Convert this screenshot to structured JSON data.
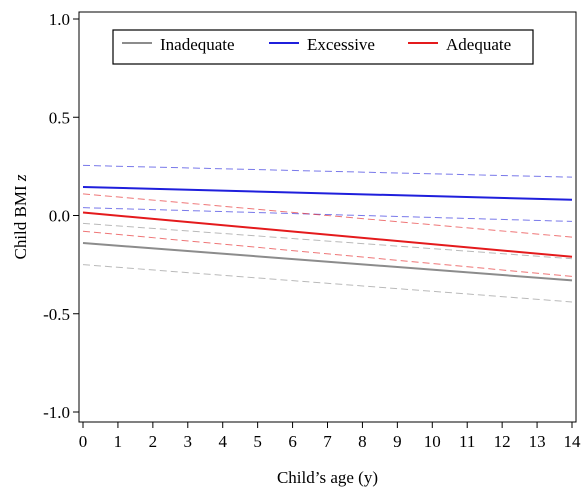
{
  "chart_data": {
    "type": "line",
    "xlabel": "Child’s age (y)",
    "ylabel": "Child BMI ",
    "ylabel_italic": "z",
    "xlim": [
      0,
      14
    ],
    "ylim": [
      -1.0,
      1.0
    ],
    "x_ticks": [
      0,
      1,
      2,
      3,
      4,
      5,
      6,
      7,
      8,
      9,
      10,
      11,
      12,
      13,
      14
    ],
    "y_ticks": [
      -1.0,
      -0.5,
      0.0,
      0.5,
      1.0
    ],
    "y_tick_labels": [
      "-1.0",
      "-0.5",
      "0.0",
      "0.5",
      "1.0"
    ],
    "grid": false,
    "legend_position": "top",
    "series": [
      {
        "name": "Inadequate",
        "color": "#8c8c8c",
        "x": [
          0,
          14
        ],
        "y": [
          -0.14,
          -0.33
        ],
        "ci_lower": [
          -0.25,
          -0.44
        ],
        "ci_upper": [
          -0.04,
          -0.22
        ]
      },
      {
        "name": "Excessive",
        "color": "#1f1fdc",
        "x": [
          0,
          14
        ],
        "y": [
          0.145,
          0.08
        ],
        "ci_lower": [
          0.04,
          -0.03
        ],
        "ci_upper": [
          0.255,
          0.195
        ]
      },
      {
        "name": "Adequate",
        "color": "#e41a1c",
        "x": [
          0,
          14
        ],
        "y": [
          0.015,
          -0.21
        ],
        "ci_lower": [
          -0.08,
          -0.31
        ],
        "ci_upper": [
          0.11,
          -0.11
        ]
      }
    ]
  }
}
